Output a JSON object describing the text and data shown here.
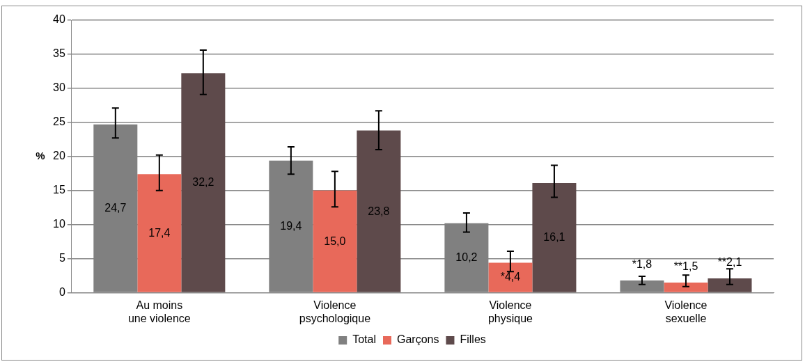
{
  "chart_data": {
    "type": "bar",
    "ylabel": "%",
    "categories": [
      "Au moins\nune violence",
      "Violence\npsychologique",
      "Violence\nphysique",
      "Violence\nsexuelle"
    ],
    "series": [
      {
        "name": "Total",
        "color": "#808080",
        "values": [
          24.7,
          19.4,
          10.2,
          1.8
        ],
        "value_labels": [
          "24,7",
          "19,4",
          "10,2",
          "*1,8"
        ],
        "errors": [
          [
            22.7,
            27.1
          ],
          [
            17.4,
            21.4
          ],
          [
            8.9,
            11.7
          ],
          [
            1.2,
            2.4
          ]
        ]
      },
      {
        "name": "Garçons",
        "color": "#e8695a",
        "values": [
          17.4,
          15.0,
          4.4,
          1.5
        ],
        "value_labels": [
          "17,4",
          "15,0",
          "*4,4",
          "**1,5"
        ],
        "errors": [
          [
            15.0,
            20.2
          ],
          [
            12.6,
            17.8
          ],
          [
            3.1,
            6.1
          ],
          [
            0.9,
            2.6
          ]
        ]
      },
      {
        "name": "Filles",
        "color": "#5e4a4b",
        "values": [
          32.2,
          23.8,
          16.1,
          2.1
        ],
        "value_labels": [
          "32,2",
          "23,8",
          "16,1",
          "**2,1"
        ],
        "errors": [
          [
            29.1,
            35.6
          ],
          [
            21.0,
            26.7
          ],
          [
            14.0,
            18.7
          ],
          [
            1.2,
            3.5
          ]
        ]
      }
    ],
    "ylim": [
      0,
      40
    ],
    "yticks": [
      0,
      5,
      10,
      15,
      20,
      25,
      30,
      35,
      40
    ],
    "grid": "y",
    "legend": "bottom"
  }
}
